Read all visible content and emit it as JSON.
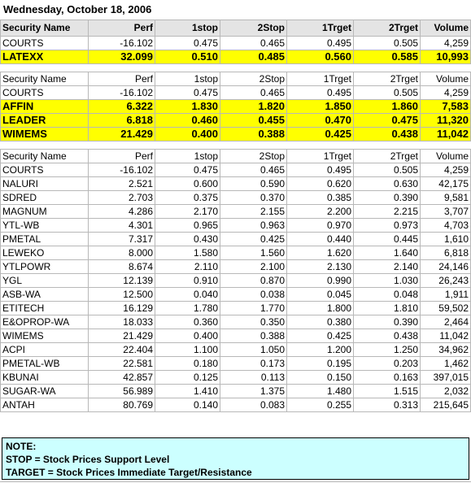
{
  "date": "Wednesday, October 18, 2006",
  "columns": [
    "Security Name",
    "Perf",
    "1stop",
    "2Stop",
    "1Trget",
    "2Trget",
    "Volume"
  ],
  "section1": [
    {
      "name": "COURTS",
      "perf": "-16.102",
      "stop1": "0.475",
      "stop2": "0.465",
      "t1": "0.495",
      "t2": "0.505",
      "vol": "4,259",
      "hl": false
    },
    {
      "name": "LATEXX",
      "perf": "32.099",
      "stop1": "0.510",
      "stop2": "0.485",
      "t1": "0.560",
      "t2": "0.585",
      "vol": "10,993",
      "hl": true
    }
  ],
  "section2": [
    {
      "name": "COURTS",
      "perf": "-16.102",
      "stop1": "0.475",
      "stop2": "0.465",
      "t1": "0.495",
      "t2": "0.505",
      "vol": "4,259",
      "hl": false
    },
    {
      "name": "AFFIN",
      "perf": "6.322",
      "stop1": "1.830",
      "stop2": "1.820",
      "t1": "1.850",
      "t2": "1.860",
      "vol": "7,583",
      "hl": true
    },
    {
      "name": "LEADER",
      "perf": "6.818",
      "stop1": "0.460",
      "stop2": "0.455",
      "t1": "0.470",
      "t2": "0.475",
      "vol": "11,320",
      "hl": true
    },
    {
      "name": "WIMEMS",
      "perf": "21.429",
      "stop1": "0.400",
      "stop2": "0.388",
      "t1": "0.425",
      "t2": "0.438",
      "vol": "11,042",
      "hl": true
    }
  ],
  "section3": [
    {
      "name": "COURTS",
      "perf": "-16.102",
      "stop1": "0.475",
      "stop2": "0.465",
      "t1": "0.495",
      "t2": "0.505",
      "vol": "4,259"
    },
    {
      "name": "NALURI",
      "perf": "2.521",
      "stop1": "0.600",
      "stop2": "0.590",
      "t1": "0.620",
      "t2": "0.630",
      "vol": "42,175"
    },
    {
      "name": "SDRED",
      "perf": "2.703",
      "stop1": "0.375",
      "stop2": "0.370",
      "t1": "0.385",
      "t2": "0.390",
      "vol": "9,581"
    },
    {
      "name": "MAGNUM",
      "perf": "4.286",
      "stop1": "2.170",
      "stop2": "2.155",
      "t1": "2.200",
      "t2": "2.215",
      "vol": "3,707"
    },
    {
      "name": "YTL-WB",
      "perf": "4.301",
      "stop1": "0.965",
      "stop2": "0.963",
      "t1": "0.970",
      "t2": "0.973",
      "vol": "4,703"
    },
    {
      "name": "PMETAL",
      "perf": "7.317",
      "stop1": "0.430",
      "stop2": "0.425",
      "t1": "0.440",
      "t2": "0.445",
      "vol": "1,610"
    },
    {
      "name": "LEWEKO",
      "perf": "8.000",
      "stop1": "1.580",
      "stop2": "1.560",
      "t1": "1.620",
      "t2": "1.640",
      "vol": "6,818"
    },
    {
      "name": "YTLPOWR",
      "perf": "8.674",
      "stop1": "2.110",
      "stop2": "2.100",
      "t1": "2.130",
      "t2": "2.140",
      "vol": "24,146"
    },
    {
      "name": "YGL",
      "perf": "12.139",
      "stop1": "0.910",
      "stop2": "0.870",
      "t1": "0.990",
      "t2": "1.030",
      "vol": "26,243"
    },
    {
      "name": "ASB-WA",
      "perf": "12.500",
      "stop1": "0.040",
      "stop2": "0.038",
      "t1": "0.045",
      "t2": "0.048",
      "vol": "1,911"
    },
    {
      "name": "ETITECH",
      "perf": "16.129",
      "stop1": "1.780",
      "stop2": "1.770",
      "t1": "1.800",
      "t2": "1.810",
      "vol": "59,502"
    },
    {
      "name": "E&OPROP-WA",
      "perf": "18.033",
      "stop1": "0.360",
      "stop2": "0.350",
      "t1": "0.380",
      "t2": "0.390",
      "vol": "2,464"
    },
    {
      "name": "WIMEMS",
      "perf": "21.429",
      "stop1": "0.400",
      "stop2": "0.388",
      "t1": "0.425",
      "t2": "0.438",
      "vol": "11,042"
    },
    {
      "name": "ACPI",
      "perf": "22.404",
      "stop1": "1.100",
      "stop2": "1.050",
      "t1": "1.200",
      "t2": "1.250",
      "vol": "34,962"
    },
    {
      "name": "PMETAL-WB",
      "perf": "22.581",
      "stop1": "0.180",
      "stop2": "0.173",
      "t1": "0.195",
      "t2": "0.203",
      "vol": "1,462"
    },
    {
      "name": "KBUNAI",
      "perf": "42.857",
      "stop1": "0.125",
      "stop2": "0.113",
      "t1": "0.150",
      "t2": "0.163",
      "vol": "397,015"
    },
    {
      "name": "SUGAR-WA",
      "perf": "56.989",
      "stop1": "1.410",
      "stop2": "1.375",
      "t1": "1.480",
      "t2": "1.515",
      "vol": "2,032"
    },
    {
      "name": "ANTAH",
      "perf": "80.769",
      "stop1": "0.140",
      "stop2": "0.083",
      "t1": "0.255",
      "t2": "0.313",
      "vol": "215,645"
    }
  ],
  "note": {
    "title": "NOTE:",
    "line1": "STOP = Stock Prices Support Level",
    "line2": "TARGET = Stock Prices Immediate Target/Resistance"
  },
  "colors": {
    "highlight": "#ffff00",
    "note_bg": "#ccffff",
    "header_bg": "#e4e4e4"
  }
}
